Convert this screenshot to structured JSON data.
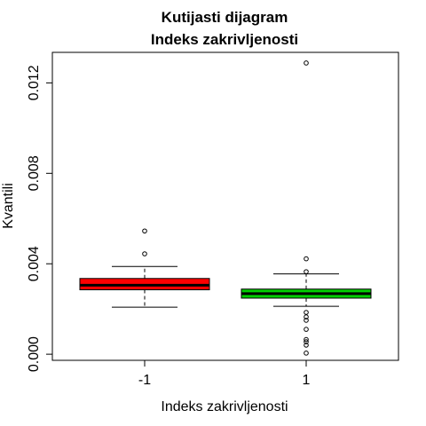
{
  "chart_data": {
    "type": "boxplot",
    "title": "Kutijasti dijagram",
    "subtitle": "Indeks zakrivljenosti",
    "xlabel": "Indeks zakrivljenosti",
    "ylabel": "Kvantili",
    "ylim": [
      -0.00027,
      0.01335
    ],
    "yticks": [
      0.0,
      0.004,
      0.008,
      0.012
    ],
    "ytick_labels": [
      "0.000",
      "0.004",
      "0.008",
      "0.012"
    ],
    "grid": false,
    "groups": [
      {
        "category": "-1",
        "color": "#ff0000",
        "whisker_low": 0.00208,
        "q1": 0.00285,
        "median": 0.00305,
        "q3": 0.00335,
        "whisker_high": 0.00388,
        "outliers": [
          0.00444,
          0.00545
        ]
      },
      {
        "category": "1",
        "color": "#00cc00",
        "whisker_low": 0.00212,
        "q1": 0.00248,
        "median": 0.00268,
        "q3": 0.00288,
        "whisker_high": 0.00355,
        "outliers": [
          0.00365,
          0.00422,
          0.01288,
          0.00185,
          0.00165,
          0.0015,
          0.0011,
          0.00065,
          0.00055,
          0.0004,
          5e-05
        ]
      }
    ]
  }
}
